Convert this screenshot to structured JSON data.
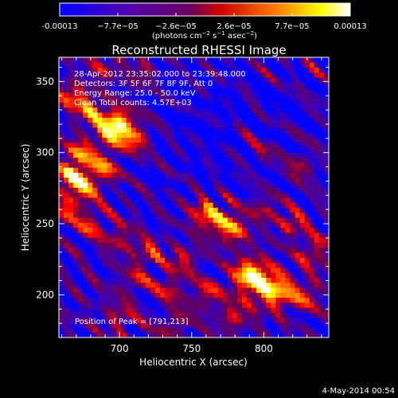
{
  "chart_data": {
    "type": "heatmap",
    "title": "Reconstructed RHESSI Image",
    "xlabel": "Heliocentric X (arcsec)",
    "ylabel": "Heliocentric Y (arcsec)",
    "xlim": [
      658,
      845
    ],
    "ylim": [
      170,
      367
    ],
    "xticks": [
      700,
      750,
      800
    ],
    "yticks": [
      200,
      250,
      300,
      350
    ],
    "colorbar": {
      "min": -0.00013,
      "max": 0.00013,
      "ticks": [
        "-0.00013",
        "−7.7e−05",
        "−2.6e−05",
        "2.6e−05",
        "7.7e−05",
        "0.00013"
      ],
      "colormap": [
        "#0000ff",
        "#4400aa",
        "#660055",
        "#ff0000",
        "#ff8800",
        "#ffff00",
        "#ffffff"
      ]
    },
    "units": {
      "prefix": "(photons cm",
      "exp1": "−2",
      "mid": " s",
      "exp2": "−1",
      "tail": " asec",
      "exp3": "−2",
      "close": ")"
    },
    "annotations": [
      "28-Apr-2012 23:35:02.000 to 23:39:48.000",
      "Detectors: 3F 5F 6F 7F 8F 9F, Att 0",
      "Energy Range: 25.0 - 50.0 keV",
      "Clean    Total counts: 4.57E+03"
    ],
    "peak_label": "Position of Peak = [791,213]",
    "peak": [
      791,
      213
    ],
    "bright_sources": [
      {
        "x": 791,
        "y": 213,
        "value": 0.00013
      },
      {
        "x": 808,
        "y": 203,
        "value": 0.00011
      },
      {
        "x": 695,
        "y": 315,
        "value": 0.0001
      },
      {
        "x": 675,
        "y": 280,
        "value": 9e-05
      },
      {
        "x": 770,
        "y": 252,
        "value": 7e-05
      }
    ]
  },
  "footer": {
    "timestamp": "4-May-2014 00:54"
  }
}
